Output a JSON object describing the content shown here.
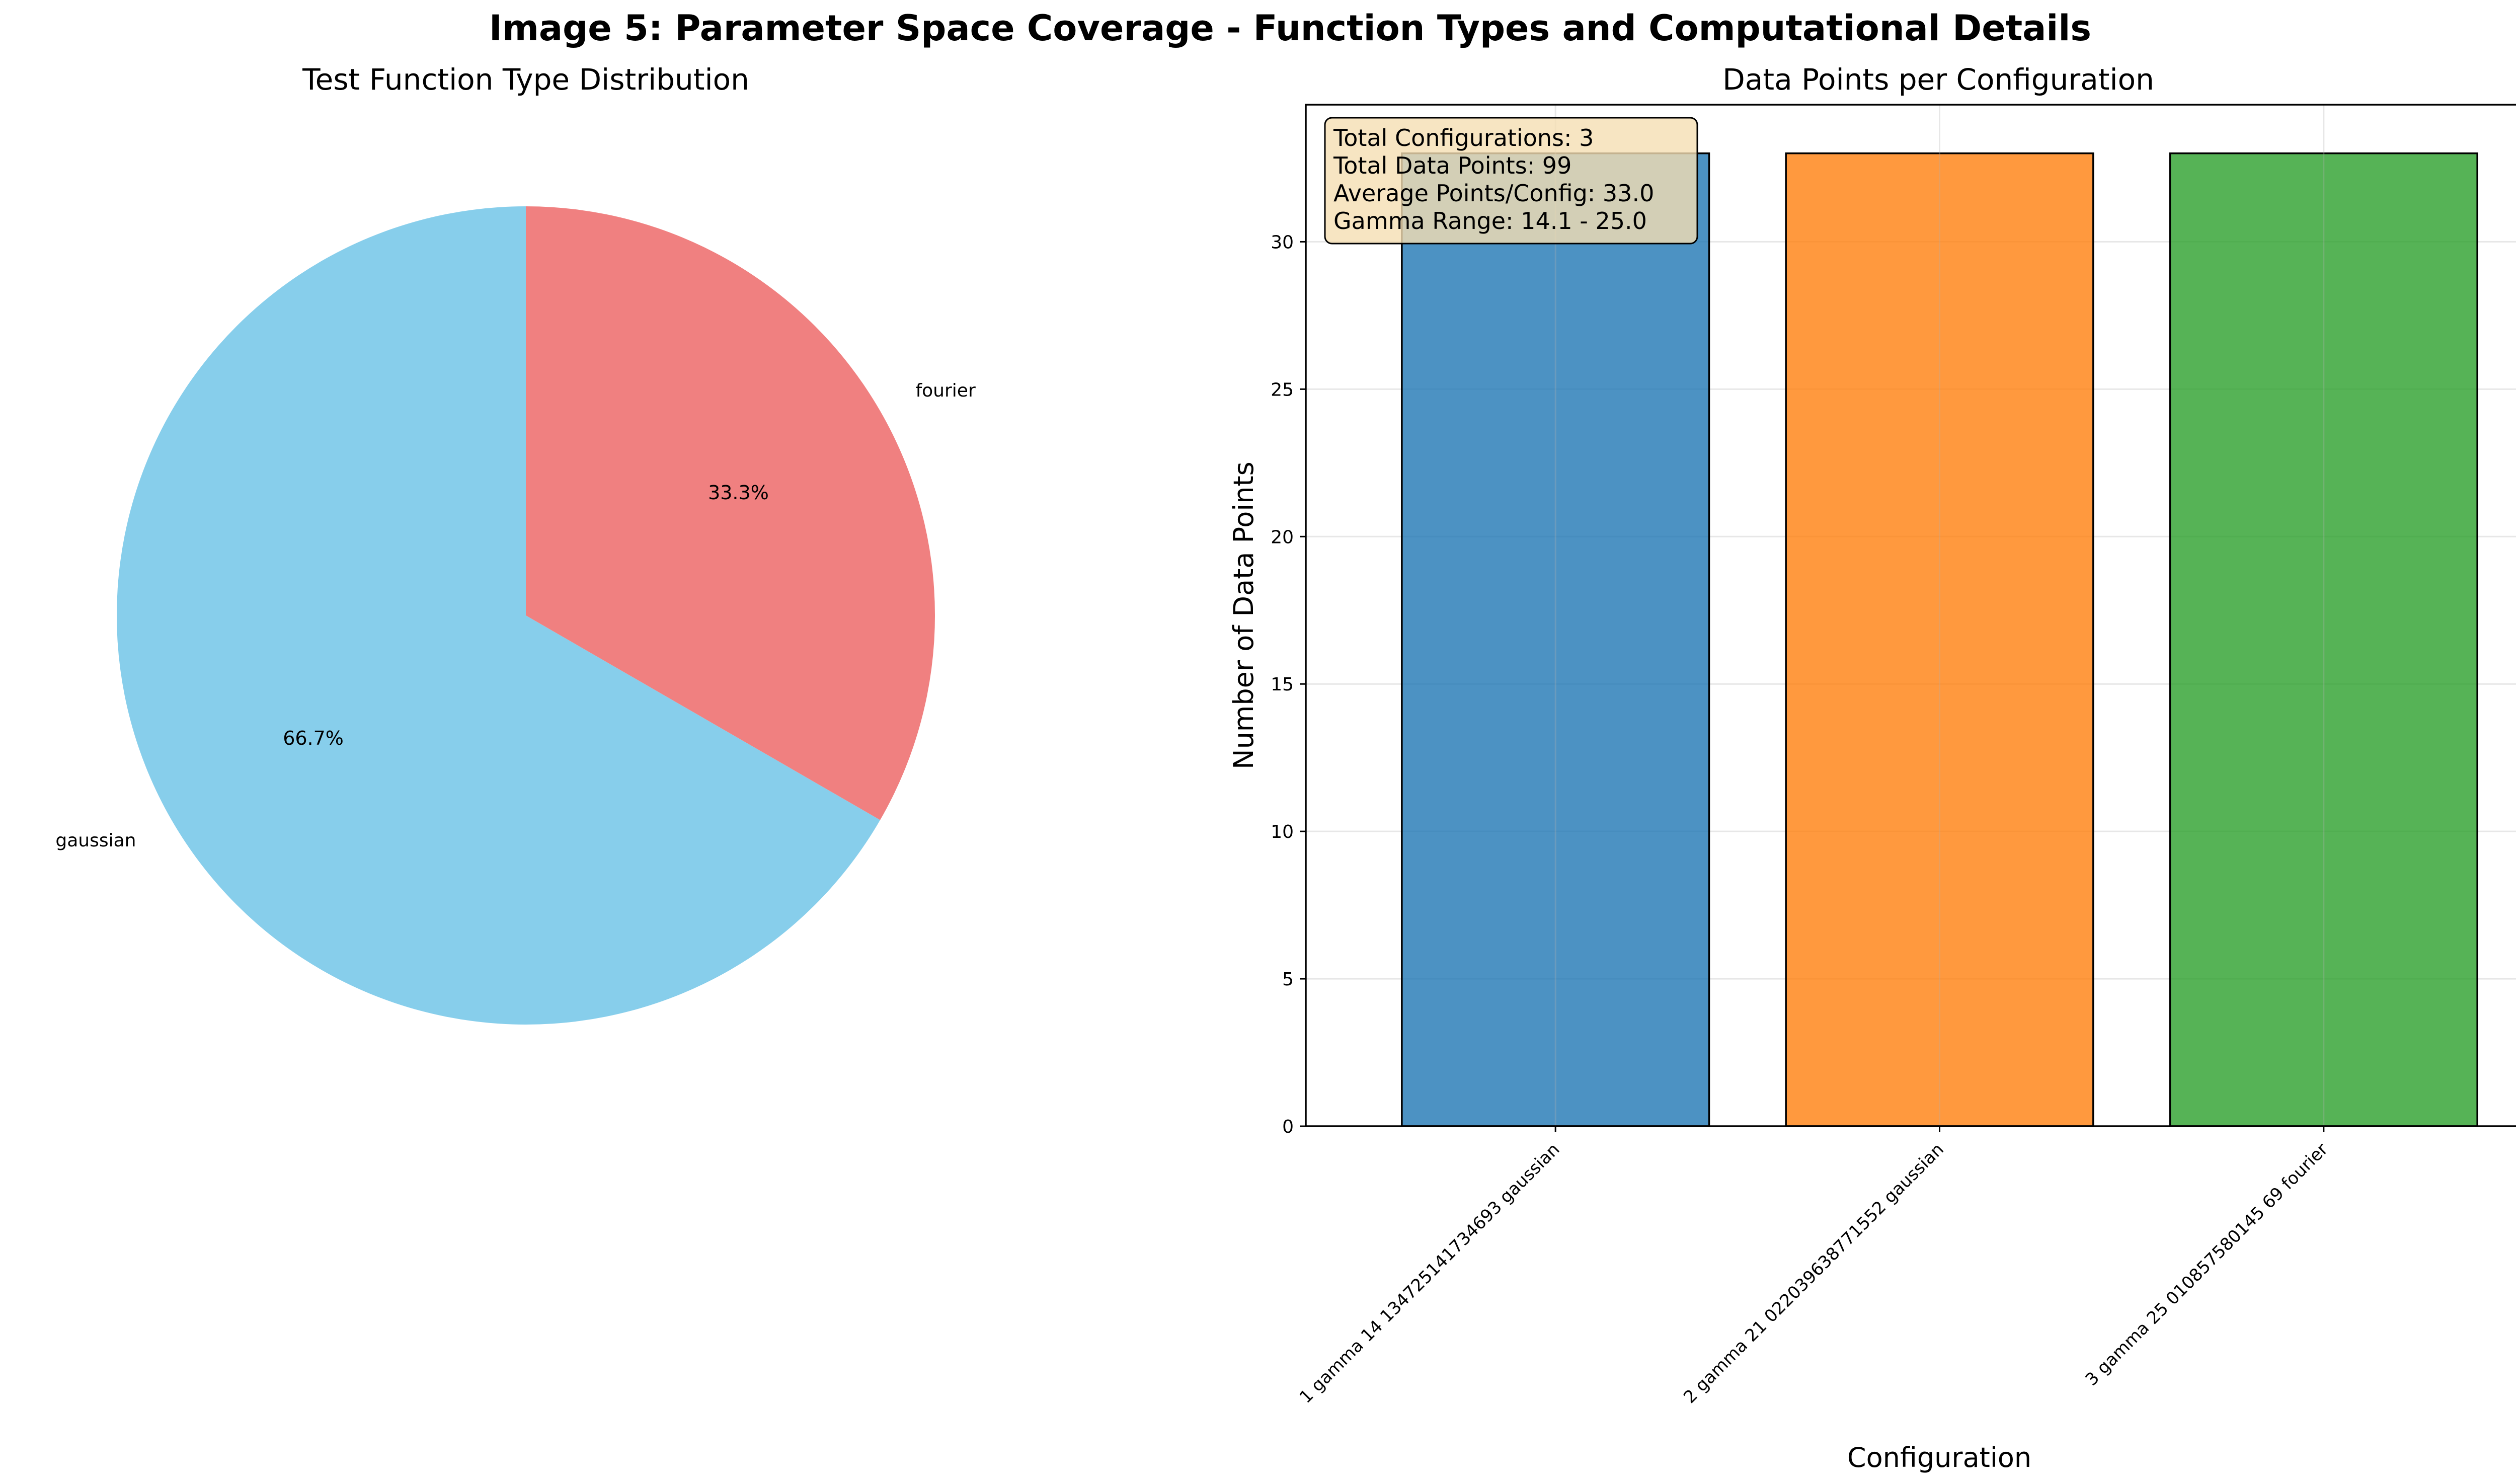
{
  "figure": {
    "suptitle": "Image 5: Parameter Space Coverage - Function Types and Computational Details"
  },
  "chart_data": [
    {
      "type": "pie",
      "title": "Test Function Type Distribution",
      "labels": [
        "gaussian",
        "fourier"
      ],
      "values": [
        2,
        1
      ],
      "percent_labels": [
        "66.7%",
        "33.3%"
      ],
      "colors": [
        "#87CEEB",
        "#F08080"
      ],
      "start_angle_deg": 90
    },
    {
      "type": "bar",
      "title": "Data Points per Configuration",
      "xlabel": "Configuration",
      "ylabel": "Number of Data Points",
      "categories": [
        "1 gamma 14 134725141734693 gaussian",
        "2 gamma 21 022039638771552 gaussian",
        "3 gamma 25 010857580145 69 fourier"
      ],
      "values": [
        33,
        33,
        33
      ],
      "colors": [
        "#1f77b4",
        "#ff7f0e",
        "#2ca02c"
      ],
      "ylim": [
        0,
        34.65
      ],
      "yticks": [
        0,
        5,
        10,
        15,
        20,
        25,
        30
      ],
      "grid": true,
      "info_box": [
        "Total Configurations: 3",
        "Total Data Points: 99",
        "Average Points/Config: 33.0",
        "Gamma Range: 14.1 - 25.0"
      ]
    }
  ]
}
